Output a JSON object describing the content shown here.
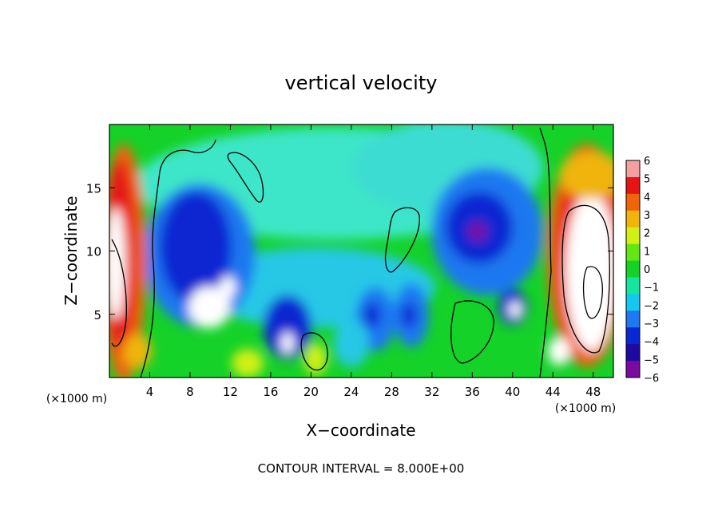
{
  "chart_data": {
    "type": "heatmap",
    "title": "vertical velocity",
    "xlabel": "X−coordinate",
    "ylabel": "Z−coordinate",
    "x_unit_label": "(×1000 m)",
    "x_unit_label_right": "(×1000 m)",
    "xlim": [
      0,
      50
    ],
    "ylim": [
      0,
      20
    ],
    "x_ticks": [
      4,
      8,
      12,
      16,
      20,
      24,
      28,
      32,
      36,
      40,
      44,
      48
    ],
    "y_ticks": [
      5,
      10,
      15
    ],
    "colorbar": {
      "levels": [
        -6,
        -5,
        -4,
        -3,
        -2,
        -1,
        0,
        1,
        2,
        3,
        4,
        5,
        6
      ],
      "labels": [
        "6",
        "5",
        "4",
        "3",
        "2",
        "1",
        "0",
        "−1",
        "−2",
        "−3",
        "−4",
        "−5",
        "−6"
      ],
      "colors": [
        "#7a0aa0",
        "#1e0aa0",
        "#0a28d2",
        "#1e78f0",
        "#14c8f0",
        "#14e6a0",
        "#14d228",
        "#64e614",
        "#d2f014",
        "#f0b40a",
        "#f0640a",
        "#e61414",
        "#f5a0a0"
      ]
    },
    "features": [
      {
        "x": 10,
        "z": 9,
        "value": -4.5
      },
      {
        "x": 9.5,
        "z": 5,
        "value": -6
      },
      {
        "x": 37,
        "z": 12,
        "value": -5
      },
      {
        "x": 39,
        "z": 5.5,
        "value": -5
      },
      {
        "x": 2,
        "z": 10,
        "value": 6
      },
      {
        "x": 47,
        "z": 9,
        "value": 6
      },
      {
        "x": 26,
        "z": 5,
        "value": -4
      },
      {
        "x": 18,
        "z": 4,
        "value": -4.5
      },
      {
        "x": 30,
        "z": 5,
        "value": -4
      }
    ],
    "annotation": "CONTOUR INTERVAL = 8.000E+00",
    "grid": false
  }
}
